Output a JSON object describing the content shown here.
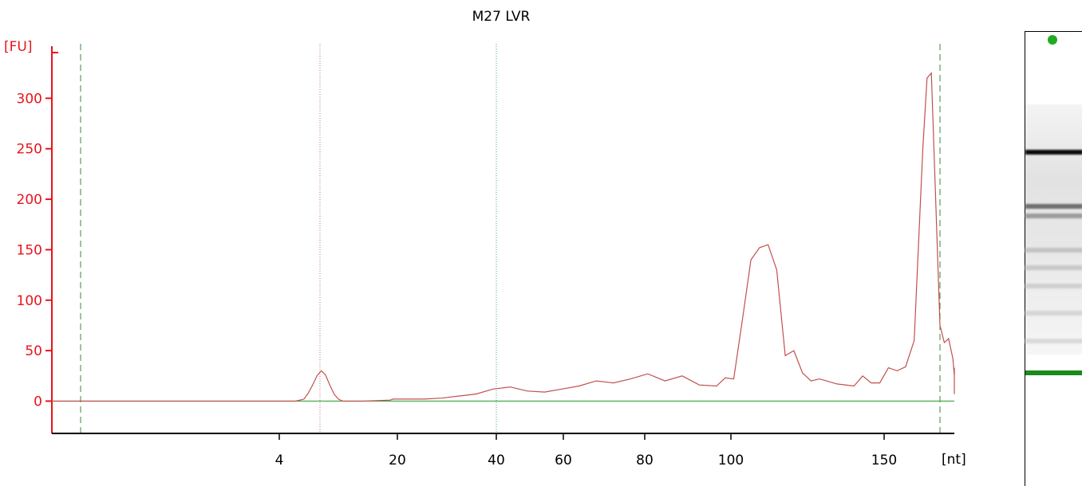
{
  "chart_data": {
    "type": "line",
    "title": "M27 LVR",
    "ylabel": "[FU]",
    "xlabel": "[nt]",
    "ylim": [
      -32,
      350
    ],
    "yticks": [
      0,
      50,
      100,
      150,
      200,
      250,
      300
    ],
    "xticks": [
      "4",
      "20",
      "40",
      "60",
      "80",
      "100",
      "150"
    ],
    "series_color": "#c0504d",
    "baseline_color": "#3aa33a",
    "marker_line_color": "#3a8a3a",
    "axis_color": "#e8141c",
    "x": [
      -0.05,
      0.0,
      0.1,
      0.2,
      0.25,
      0.26,
      0.265,
      0.27,
      0.275,
      0.28,
      0.285,
      0.29,
      0.295,
      0.3,
      0.305,
      0.31,
      0.33,
      0.36,
      0.364,
      0.38,
      0.4,
      0.42,
      0.44,
      0.46,
      0.48,
      0.5,
      0.52,
      0.54,
      0.56,
      0.58,
      0.6,
      0.62,
      0.64,
      0.66,
      0.68,
      0.7,
      0.72,
      0.74,
      0.75,
      0.76,
      0.77,
      0.78,
      0.79,
      0.8,
      0.81,
      0.82,
      0.83,
      0.84,
      0.85,
      0.86,
      0.88,
      0.9,
      0.91,
      0.92,
      0.93,
      0.94,
      0.95,
      0.96,
      0.97,
      0.98,
      0.985,
      0.99,
      0.995,
      1.0,
      1.005,
      1.01,
      1.015,
      1.02,
      1.03,
      1.04,
      1.05,
      1.06,
      1.08,
      1.1,
      1.11,
      1.12,
      1.13,
      1.14,
      1.15
    ],
    "values": [
      0,
      0,
      0,
      0,
      0,
      2,
      8,
      16,
      25,
      30,
      26,
      16,
      7,
      2,
      0,
      0,
      0,
      1,
      2,
      2,
      2,
      3,
      5,
      7,
      12,
      14,
      10,
      9,
      12,
      15,
      20,
      18,
      22,
      27,
      20,
      25,
      16,
      15,
      23,
      22,
      80,
      140,
      152,
      155,
      130,
      45,
      50,
      28,
      20,
      22,
      17,
      15,
      25,
      18,
      18,
      33,
      30,
      34,
      60,
      250,
      320,
      325,
      200,
      75,
      58,
      62,
      42,
      25,
      20,
      25,
      33,
      20,
      15,
      13,
      13,
      12,
      12,
      10,
      7
    ]
  },
  "gel": {
    "bands": [
      {
        "pos": 0.265,
        "strength": 1.0
      },
      {
        "pos": 0.385,
        "strength": 0.55
      },
      {
        "pos": 0.405,
        "strength": 0.35
      },
      {
        "pos": 0.48,
        "strength": 0.18
      },
      {
        "pos": 0.52,
        "strength": 0.15
      },
      {
        "pos": 0.56,
        "strength": 0.12
      },
      {
        "pos": 0.62,
        "strength": 0.1
      },
      {
        "pos": 0.68,
        "strength": 0.08
      }
    ],
    "marker_color": "#1a8a1a",
    "top_marker_color": "#22aa22"
  }
}
